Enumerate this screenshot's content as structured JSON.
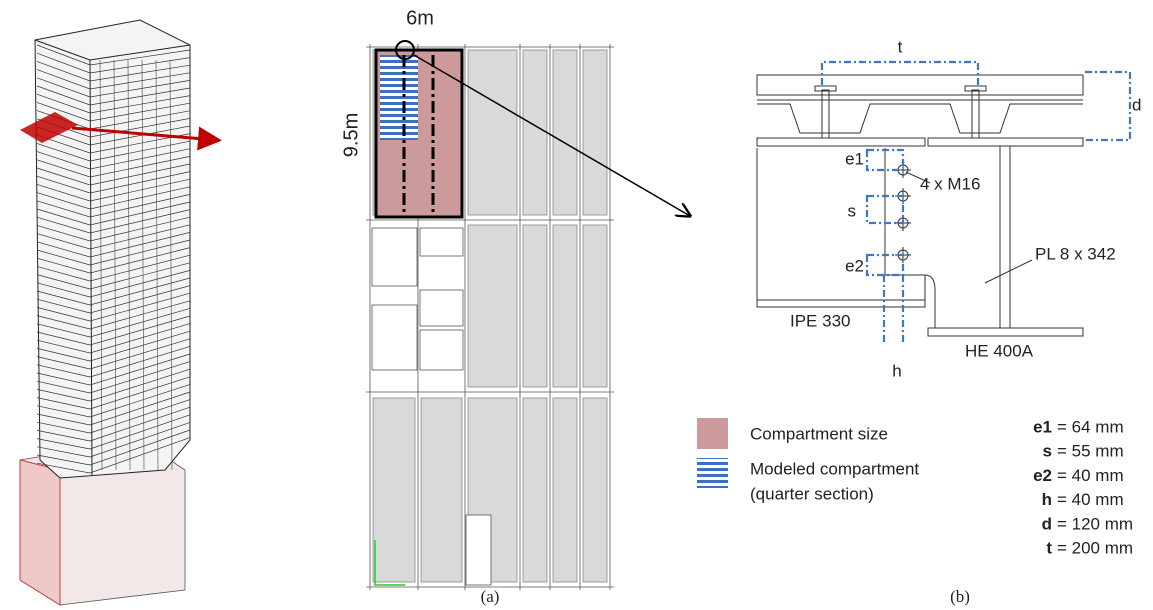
{
  "panel_a": {
    "width_label": "6m",
    "height_label": "9.5m",
    "caption": "(a)"
  },
  "panel_b": {
    "labels": {
      "t": "t",
      "d": "d",
      "e1": "e1",
      "s": "s",
      "e2": "e2",
      "h": "h",
      "bolts": "4 x M16",
      "plate": "PL 8 x 342",
      "beam": "IPE 330",
      "column": "HE 400A"
    },
    "caption": "(b)"
  },
  "legend": [
    {
      "label": [
        "Compartment size"
      ]
    },
    {
      "label": [
        "Modeled compartment",
        "(quarter section)"
      ]
    }
  ],
  "parameters": [
    {
      "symbol": "e1",
      "text": "= 64 mm"
    },
    {
      "symbol": "s",
      "text": "= 55 mm"
    },
    {
      "symbol": "e2",
      "text": "= 40 mm"
    },
    {
      "symbol": "h",
      "text": "= 40 mm"
    },
    {
      "symbol": "d",
      "text": "= 120 mm"
    },
    {
      "symbol": "t",
      "text": "= 200 mm"
    }
  ]
}
